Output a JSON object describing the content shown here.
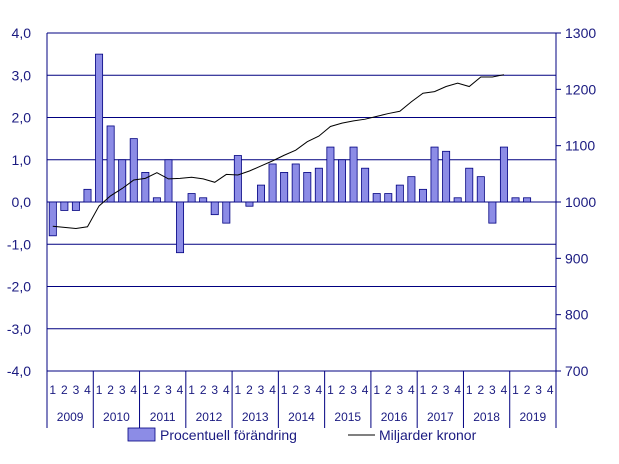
{
  "chart_data": {
    "type": "bar",
    "quarter_labels": [
      "1",
      "2",
      "3",
      "4"
    ],
    "years": [
      "2009",
      "2010",
      "2011",
      "2012",
      "2013",
      "2014",
      "2015",
      "2016",
      "2017",
      "2018",
      "2019"
    ],
    "y_left": {
      "range": [
        -4.0,
        4.0
      ],
      "ticks": [
        "4,0",
        "3,0",
        "2,0",
        "1,0",
        "0,0",
        "-1,0",
        "-2,0",
        "-3,0",
        "-4,0"
      ]
    },
    "y_right": {
      "range": [
        700,
        1300
      ],
      "ticks": [
        "1300",
        "1200",
        "1100",
        "1000",
        "900",
        "800",
        "700"
      ]
    },
    "grid": true,
    "legend_position": "bottom",
    "series": [
      {
        "name": "Procentuell förändring",
        "kind": "bar",
        "axis": "left",
        "color": "#8c8ce6",
        "values": [
          -0.8,
          -0.2,
          -0.2,
          0.3,
          3.5,
          1.8,
          1.0,
          1.5,
          0.7,
          0.1,
          1.0,
          -1.2,
          0.2,
          0.1,
          -0.3,
          -0.5,
          1.1,
          -0.1,
          0.4,
          0.9,
          0.7,
          0.9,
          0.7,
          0.8,
          1.3,
          1.0,
          1.3,
          0.8,
          0.2,
          0.2,
          0.4,
          0.6,
          0.3,
          1.3,
          1.2,
          0.1,
          0.8,
          0.6,
          -0.5,
          1.3,
          0.1,
          0.1,
          null,
          null
        ]
      },
      {
        "name": "Miljarder kronor",
        "kind": "line",
        "axis": "right",
        "color": "#000000",
        "values": [
          957,
          955,
          953,
          956,
          993,
          1011,
          1024,
          1039,
          1042,
          1052,
          1041,
          1042,
          1044,
          1041,
          1035,
          1049,
          1048,
          1055,
          1064,
          1073,
          1083,
          1092,
          1107,
          1117,
          1134,
          1140,
          1144,
          1147,
          1152,
          1157,
          1161,
          1178,
          1193,
          1196,
          1205,
          1211,
          1205,
          1222,
          1222,
          1226,
          null,
          null,
          null,
          null
        ]
      }
    ]
  }
}
